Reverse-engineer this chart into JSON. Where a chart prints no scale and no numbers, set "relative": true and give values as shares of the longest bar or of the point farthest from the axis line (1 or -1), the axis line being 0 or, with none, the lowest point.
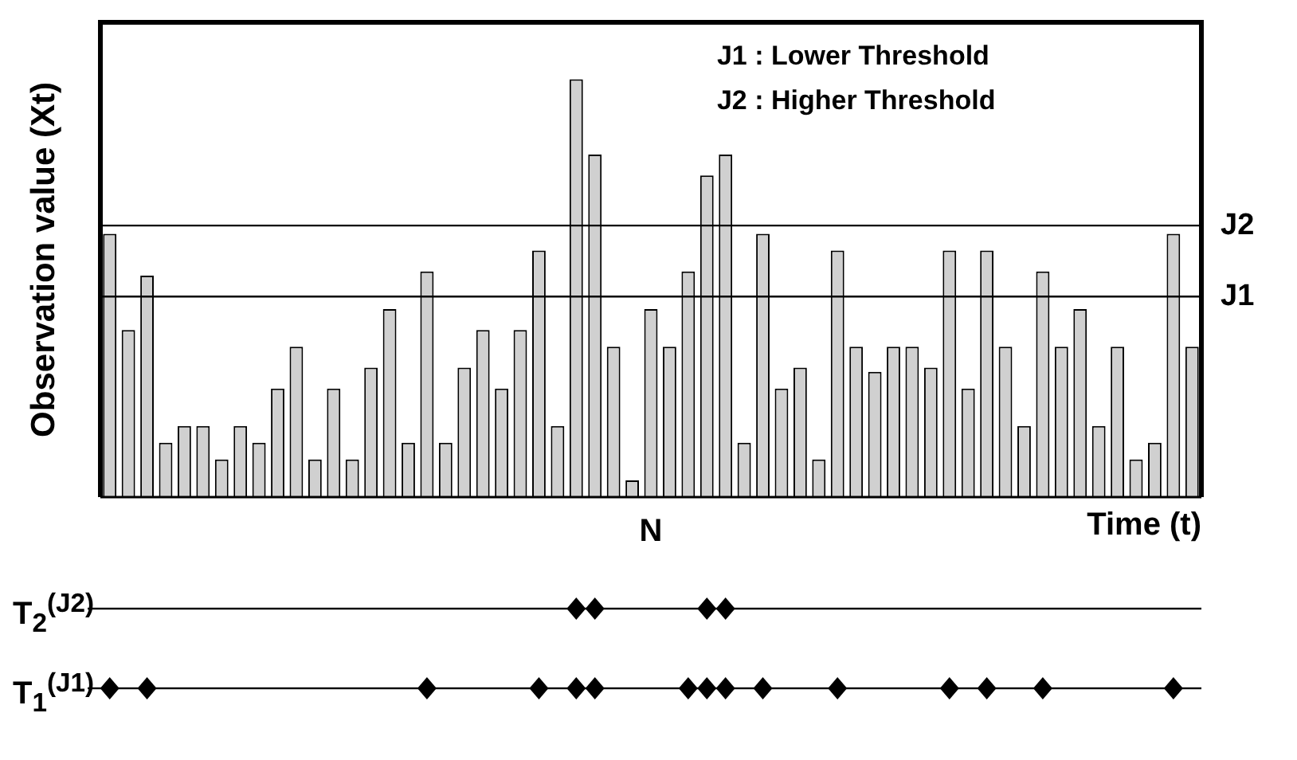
{
  "chart_data": {
    "type": "bar",
    "relative": true,
    "ylabel": "Observation value (Xt)",
    "xlabel": "Time (t)",
    "color": "#d0d0d0",
    "categories": [
      null,
      null,
      null,
      null,
      null,
      null,
      null,
      null,
      null,
      null,
      null,
      null,
      null,
      null,
      null,
      null,
      null,
      null,
      null,
      null,
      null,
      null,
      null,
      null,
      null,
      null,
      null,
      null,
      null,
      null,
      null,
      null,
      null,
      null,
      null,
      null,
      null,
      null,
      null,
      null,
      null,
      null,
      null,
      null,
      null,
      null,
      null,
      null,
      null,
      null,
      null,
      null,
      null,
      null,
      null,
      null,
      null,
      null,
      null
    ],
    "values": [
      0.63,
      0.4,
      0.53,
      0.13,
      0.17,
      0.17,
      0.09,
      0.17,
      0.13,
      0.26,
      0.36,
      0.09,
      0.26,
      0.09,
      0.31,
      0.45,
      0.13,
      0.54,
      0.13,
      0.31,
      0.4,
      0.26,
      0.4,
      0.59,
      0.17,
      1,
      0.82,
      0.36,
      0.04,
      0.45,
      0.36,
      0.54,
      0.77,
      0.82,
      0.13,
      0.63,
      0.26,
      0.31,
      0.09,
      0.59,
      0.36,
      0.3,
      0.36,
      0.36,
      0.31,
      0.59,
      0.26,
      0.59,
      0.36,
      0.17,
      0.54,
      0.36,
      0.45,
      0.17,
      0.36,
      0.09,
      0.13,
      0.63,
      0.36
    ],
    "ref_lines": [
      {
        "axis": "y",
        "value": 0.48,
        "label": "J1",
        "color": "#000000"
      },
      {
        "axis": "y",
        "value": 0.65,
        "label": "J2",
        "color": "#000000"
      }
    ],
    "annotations": [
      "J1 : Lower Threshold",
      "J2 : Higher Threshold",
      "N",
      "T$_{2}$$^{(J2)}$",
      "T$_{1}$$^{(J1)}$"
    ]
  }
}
